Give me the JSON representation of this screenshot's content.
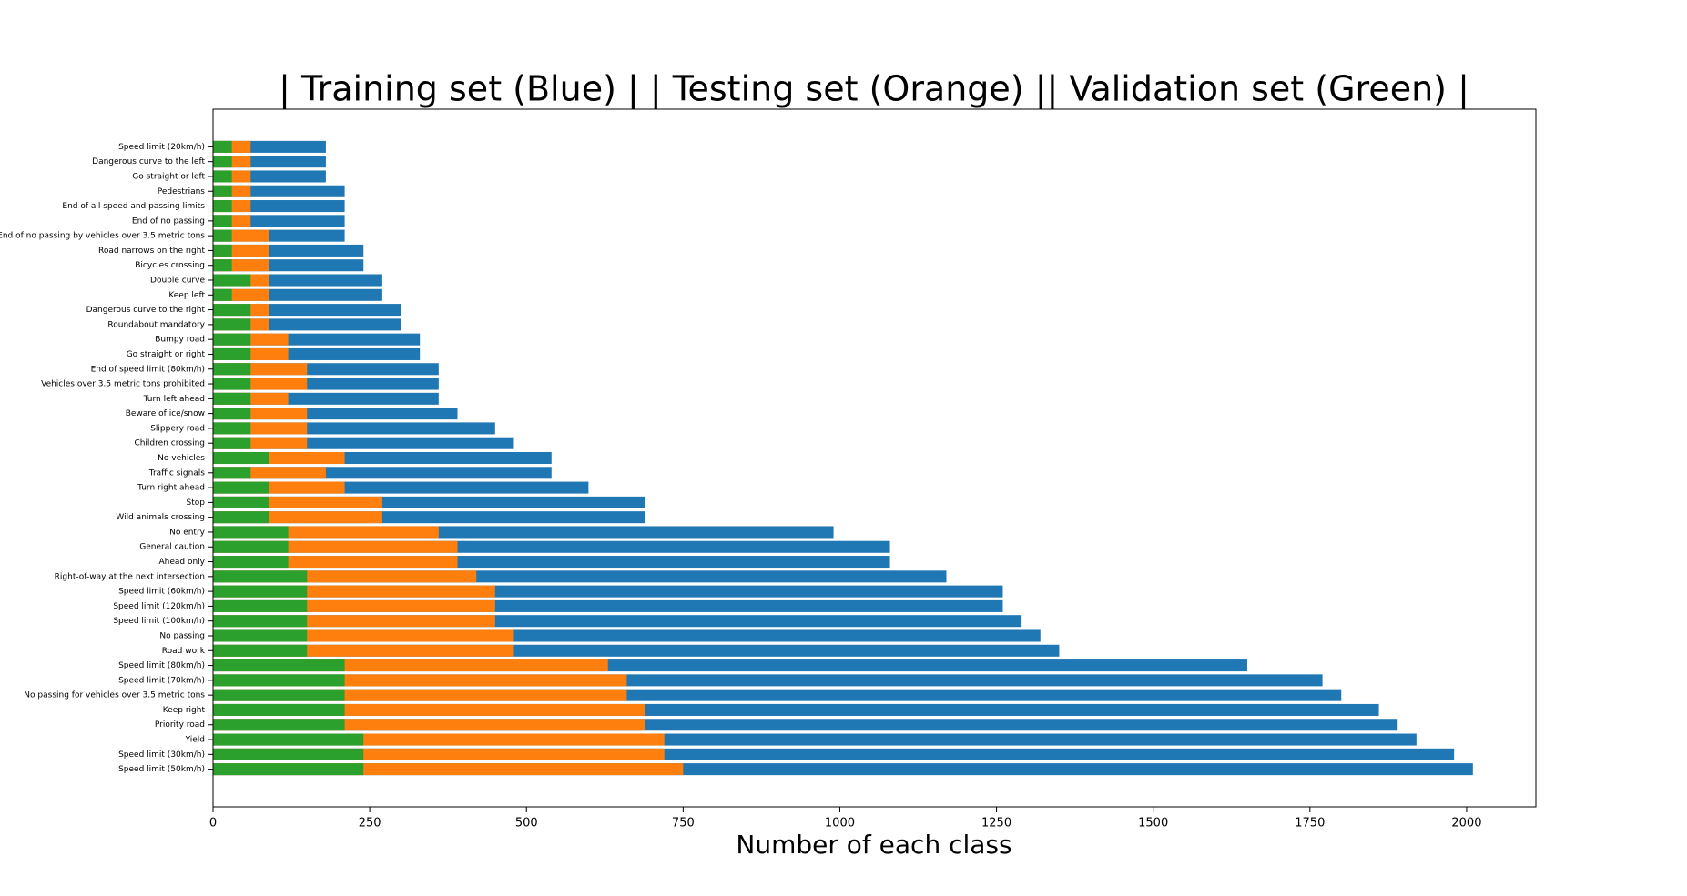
{
  "chart_data": {
    "type": "barh_overlap",
    "title": "| Training set (Blue) | | Testing set (Orange) || Validation set (Green) |",
    "xlabel": "Number of each class",
    "categories": [
      "Speed limit (20km/h)",
      "Dangerous curve to the left",
      "Go straight or left",
      "Pedestrians",
      "End of all speed and passing limits",
      "End of no passing",
      "End of no passing by vehicles over 3.5 metric tons",
      "Road narrows on the right",
      "Bicycles crossing",
      "Double curve",
      "Keep left",
      "Dangerous curve to the right",
      "Roundabout mandatory",
      "Bumpy road",
      "Go straight or right",
      "End of speed limit (80km/h)",
      "Vehicles over 3.5 metric tons prohibited",
      "Turn left ahead",
      "Beware of ice/snow",
      "Slippery road",
      "Children crossing",
      "No vehicles",
      "Traffic signals",
      "Turn right ahead",
      "Stop",
      "Wild animals crossing",
      "No entry",
      "General caution",
      "Ahead only",
      "Right-of-way at the next intersection",
      "Speed limit (60km/h)",
      "Speed limit (120km/h)",
      "Speed limit (100km/h)",
      "No passing",
      "Road work",
      "Speed limit (80km/h)",
      "Speed limit (70km/h)",
      "No passing for vehicles over 3.5 metric tons",
      "Keep right",
      "Priority road",
      "Yield",
      "Speed limit (30km/h)",
      "Speed limit (50km/h)"
    ],
    "series": [
      {
        "color": "#1f77b4",
        "values": [
          180,
          180,
          180,
          210,
          210,
          210,
          210,
          240,
          240,
          270,
          270,
          300,
          300,
          330,
          330,
          360,
          360,
          360,
          390,
          450,
          480,
          540,
          540,
          599,
          690,
          690,
          990,
          1080,
          1080,
          1170,
          1260,
          1260,
          1290,
          1320,
          1350,
          1650,
          1770,
          1800,
          1860,
          1890,
          1920,
          1980,
          2010
        ]
      },
      {
        "color": "#ff7f0e",
        "values": [
          60,
          60,
          60,
          60,
          60,
          60,
          90,
          90,
          90,
          90,
          90,
          90,
          90,
          120,
          120,
          150,
          150,
          120,
          150,
          150,
          150,
          210,
          180,
          210,
          270,
          270,
          360,
          390,
          390,
          420,
          450,
          450,
          450,
          480,
          480,
          630,
          660,
          660,
          690,
          690,
          720,
          720,
          750
        ]
      },
      {
        "color": "#2ca02c",
        "values": [
          30,
          30,
          30,
          30,
          30,
          30,
          30,
          30,
          30,
          60,
          30,
          60,
          60,
          60,
          60,
          60,
          60,
          60,
          60,
          60,
          60,
          90,
          60,
          90,
          90,
          90,
          120,
          120,
          120,
          150,
          150,
          150,
          150,
          150,
          150,
          210,
          210,
          210,
          210,
          210,
          240,
          240,
          240
        ]
      }
    ],
    "xlim": [
      0,
      2110.5
    ],
    "xticks": [
      0,
      250,
      500,
      750,
      1000,
      1250,
      1500,
      1750,
      2000
    ]
  }
}
